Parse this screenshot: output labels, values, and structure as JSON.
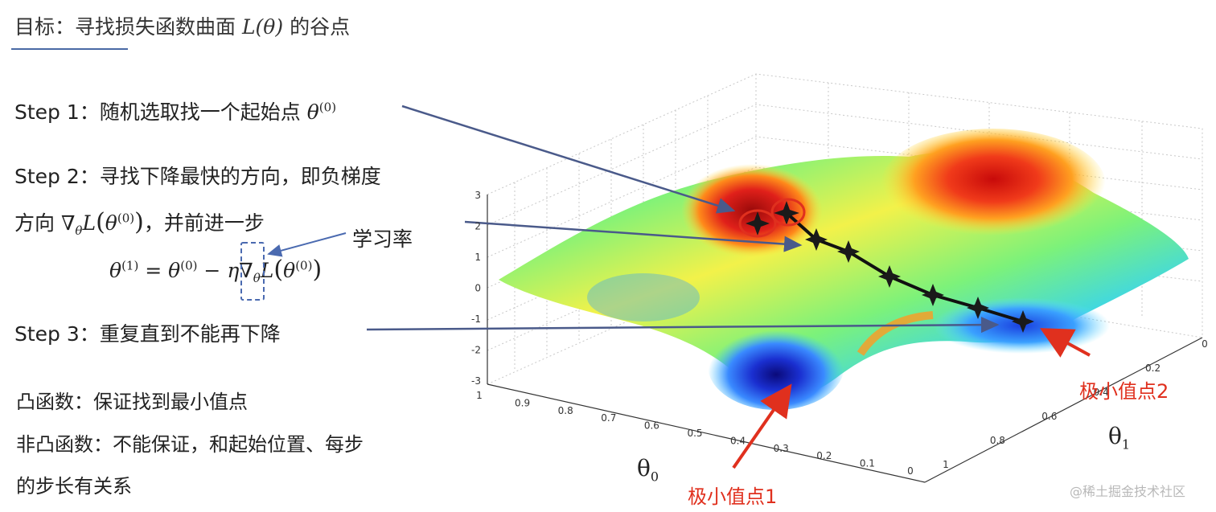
{
  "title": {
    "prefix": "目标：寻找损失函数曲面 ",
    "math": "L(θ)",
    "suffix": " 的谷点"
  },
  "steps": {
    "step1": {
      "label": "Step 1：随机选取找一个起始点 ",
      "theta": "θ",
      "sup": "(0)"
    },
    "step2": {
      "line1": "Step 2：寻找下降最快的方向，即负梯度",
      "line2_prefix": "方向 ",
      "grad": "∇",
      "grad_sub": "θ",
      "func": "L",
      "paren_open": "(",
      "theta": "θ",
      "sup": "(0)",
      "paren_close": ")",
      "line2_suffix": "，并前进一步"
    },
    "formula": {
      "lhs": "θ",
      "lhs_sup": "(1)",
      "eq": " = ",
      "t0": "θ",
      "t0_sup": "(0)",
      "minus": " − ",
      "eta": "η",
      "grad": "∇",
      "grad_sub": "θ",
      "func": "L",
      "paren_open": "(",
      "t1": "θ",
      "t1_sup": "(0)",
      "paren_close": ")"
    },
    "step3": {
      "label": "Step 3：重复直到不能再下降"
    }
  },
  "learning_rate_label": "学习率",
  "notes": {
    "convex": "凸函数：保证找到最小值点",
    "nonconvex_line1": "非凸函数：不能保证，和起始位置、每步",
    "nonconvex_line2": "的步长有关系"
  },
  "plot": {
    "z_ticks": [
      "3",
      "2",
      "1",
      "0",
      "-1",
      "-2",
      "-3"
    ],
    "theta0_ticks": [
      "1",
      "0.9",
      "0.8",
      "0.7",
      "0.6",
      "0.5",
      "0.4",
      "0.3",
      "0.2",
      "0.1",
      "0"
    ],
    "theta1_ticks": [
      "0",
      "0.2",
      "0.4",
      "0.6",
      "0.8",
      "1"
    ],
    "theta0_label": "θ",
    "theta0_sub": "0",
    "theta1_label": "θ",
    "theta1_sub": "1",
    "minimum1_label": "极小值点1",
    "minimum2_label": "极小值点2"
  },
  "watermark": "@稀土掘金技术社区",
  "colors": {
    "annotation_red": "#e0301e",
    "arrow_blue": "#4a5a8a",
    "title_underline": "#4a6aa5"
  }
}
